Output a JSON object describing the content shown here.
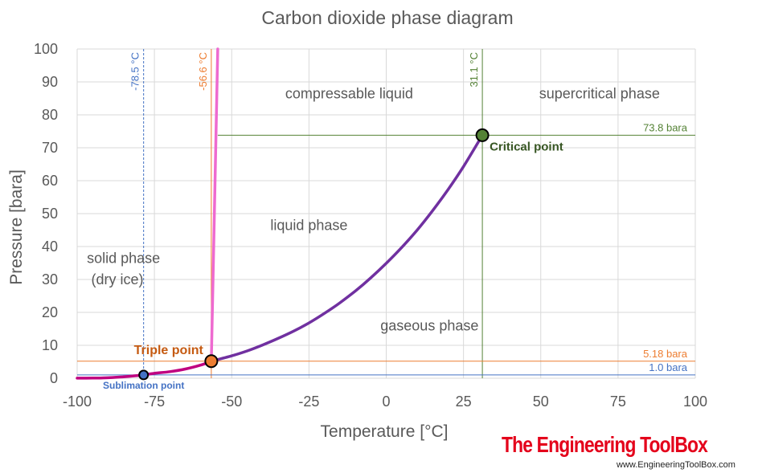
{
  "chart_data": {
    "type": "line",
    "title": "Carbon dioxide phase diagram",
    "xlabel": "Temperature [°C]",
    "ylabel": "Pressure [bara]",
    "xlim": [
      -100,
      100
    ],
    "ylim": [
      0,
      100
    ],
    "x_ticks": [
      -100,
      -75,
      -50,
      -25,
      0,
      25,
      50,
      75,
      100
    ],
    "y_ticks": [
      0,
      10,
      20,
      30,
      40,
      50,
      60,
      70,
      80,
      90,
      100
    ],
    "grid": true,
    "series": [
      {
        "color": "#7030a0",
        "x": [
          -56.6,
          -50,
          -45,
          -40,
          -35,
          -30,
          -25,
          -20,
          -15,
          -10,
          -5,
          0,
          5,
          10,
          15,
          20,
          25,
          31.1
        ],
        "y": [
          5.18,
          6.8,
          8.3,
          10.1,
          12.1,
          14.3,
          16.8,
          19.7,
          22.9,
          26.5,
          30.5,
          34.9,
          39.7,
          45.0,
          50.9,
          57.3,
          64.3,
          73.8
        ]
      },
      {
        "color": "#c00080",
        "x": [
          -100,
          -95,
          -90,
          -85,
          -80,
          -78.5,
          -75,
          -70,
          -65,
          -60,
          -56.6
        ],
        "y": [
          0.014,
          0.05,
          0.15,
          0.45,
          0.85,
          1.0,
          1.5,
          2.0,
          2.8,
          4.0,
          5.18
        ]
      },
      {
        "color": "#ee6ad0",
        "x": [
          -56.6,
          -54.5
        ],
        "y": [
          5.18,
          100
        ]
      }
    ],
    "reference_lines": [
      {
        "orientation": "vertical",
        "x": -78.5,
        "label": "-78.5 °C",
        "color": "#4472c4",
        "dashed": true
      },
      {
        "orientation": "vertical",
        "x": -56.6,
        "label": "-56.6 °C",
        "color": "#ed7d31",
        "dashed": false
      },
      {
        "orientation": "vertical",
        "x": 31.1,
        "label": "31.1 °C",
        "color": "#548235",
        "dashed": false
      },
      {
        "orientation": "horizontal",
        "y": 73.8,
        "x_from": -54.5,
        "label": "73.8 bara",
        "color": "#548235"
      },
      {
        "orientation": "horizontal",
        "y": 5.18,
        "label": "5.18 bara",
        "color": "#ed7d31"
      },
      {
        "orientation": "horizontal",
        "y": 1.0,
        "label": "1.0 bara",
        "color": "#4472c4"
      }
    ],
    "points": [
      {
        "name": "Sublimation point",
        "x": -78.5,
        "y": 1.0,
        "fill": "#4472c4",
        "text_color": "#4472c4"
      },
      {
        "name": "Triple point",
        "x": -56.6,
        "y": 5.18,
        "fill": "#ed7d31",
        "text_color": "#c55a11"
      },
      {
        "name": "Critical point",
        "x": 31.1,
        "y": 73.8,
        "fill": "#548235",
        "text_color": "#375623"
      }
    ],
    "region_labels": [
      {
        "text": "compressable liquid",
        "x": -12,
        "y": 85
      },
      {
        "text": "supercritical phase",
        "x": 69,
        "y": 85
      },
      {
        "text": "liquid phase",
        "x": -25,
        "y": 45
      },
      {
        "text": "solid phase",
        "x": -85,
        "y": 35
      },
      {
        "text": "(dry ice)",
        "x": -87,
        "y": 28.5
      },
      {
        "text": "gaseous phase",
        "x": 14,
        "y": 14.5
      }
    ]
  },
  "branding": {
    "logo_text": "The Engineering ToolBox",
    "url": "www.EngineeringToolBox.com"
  }
}
